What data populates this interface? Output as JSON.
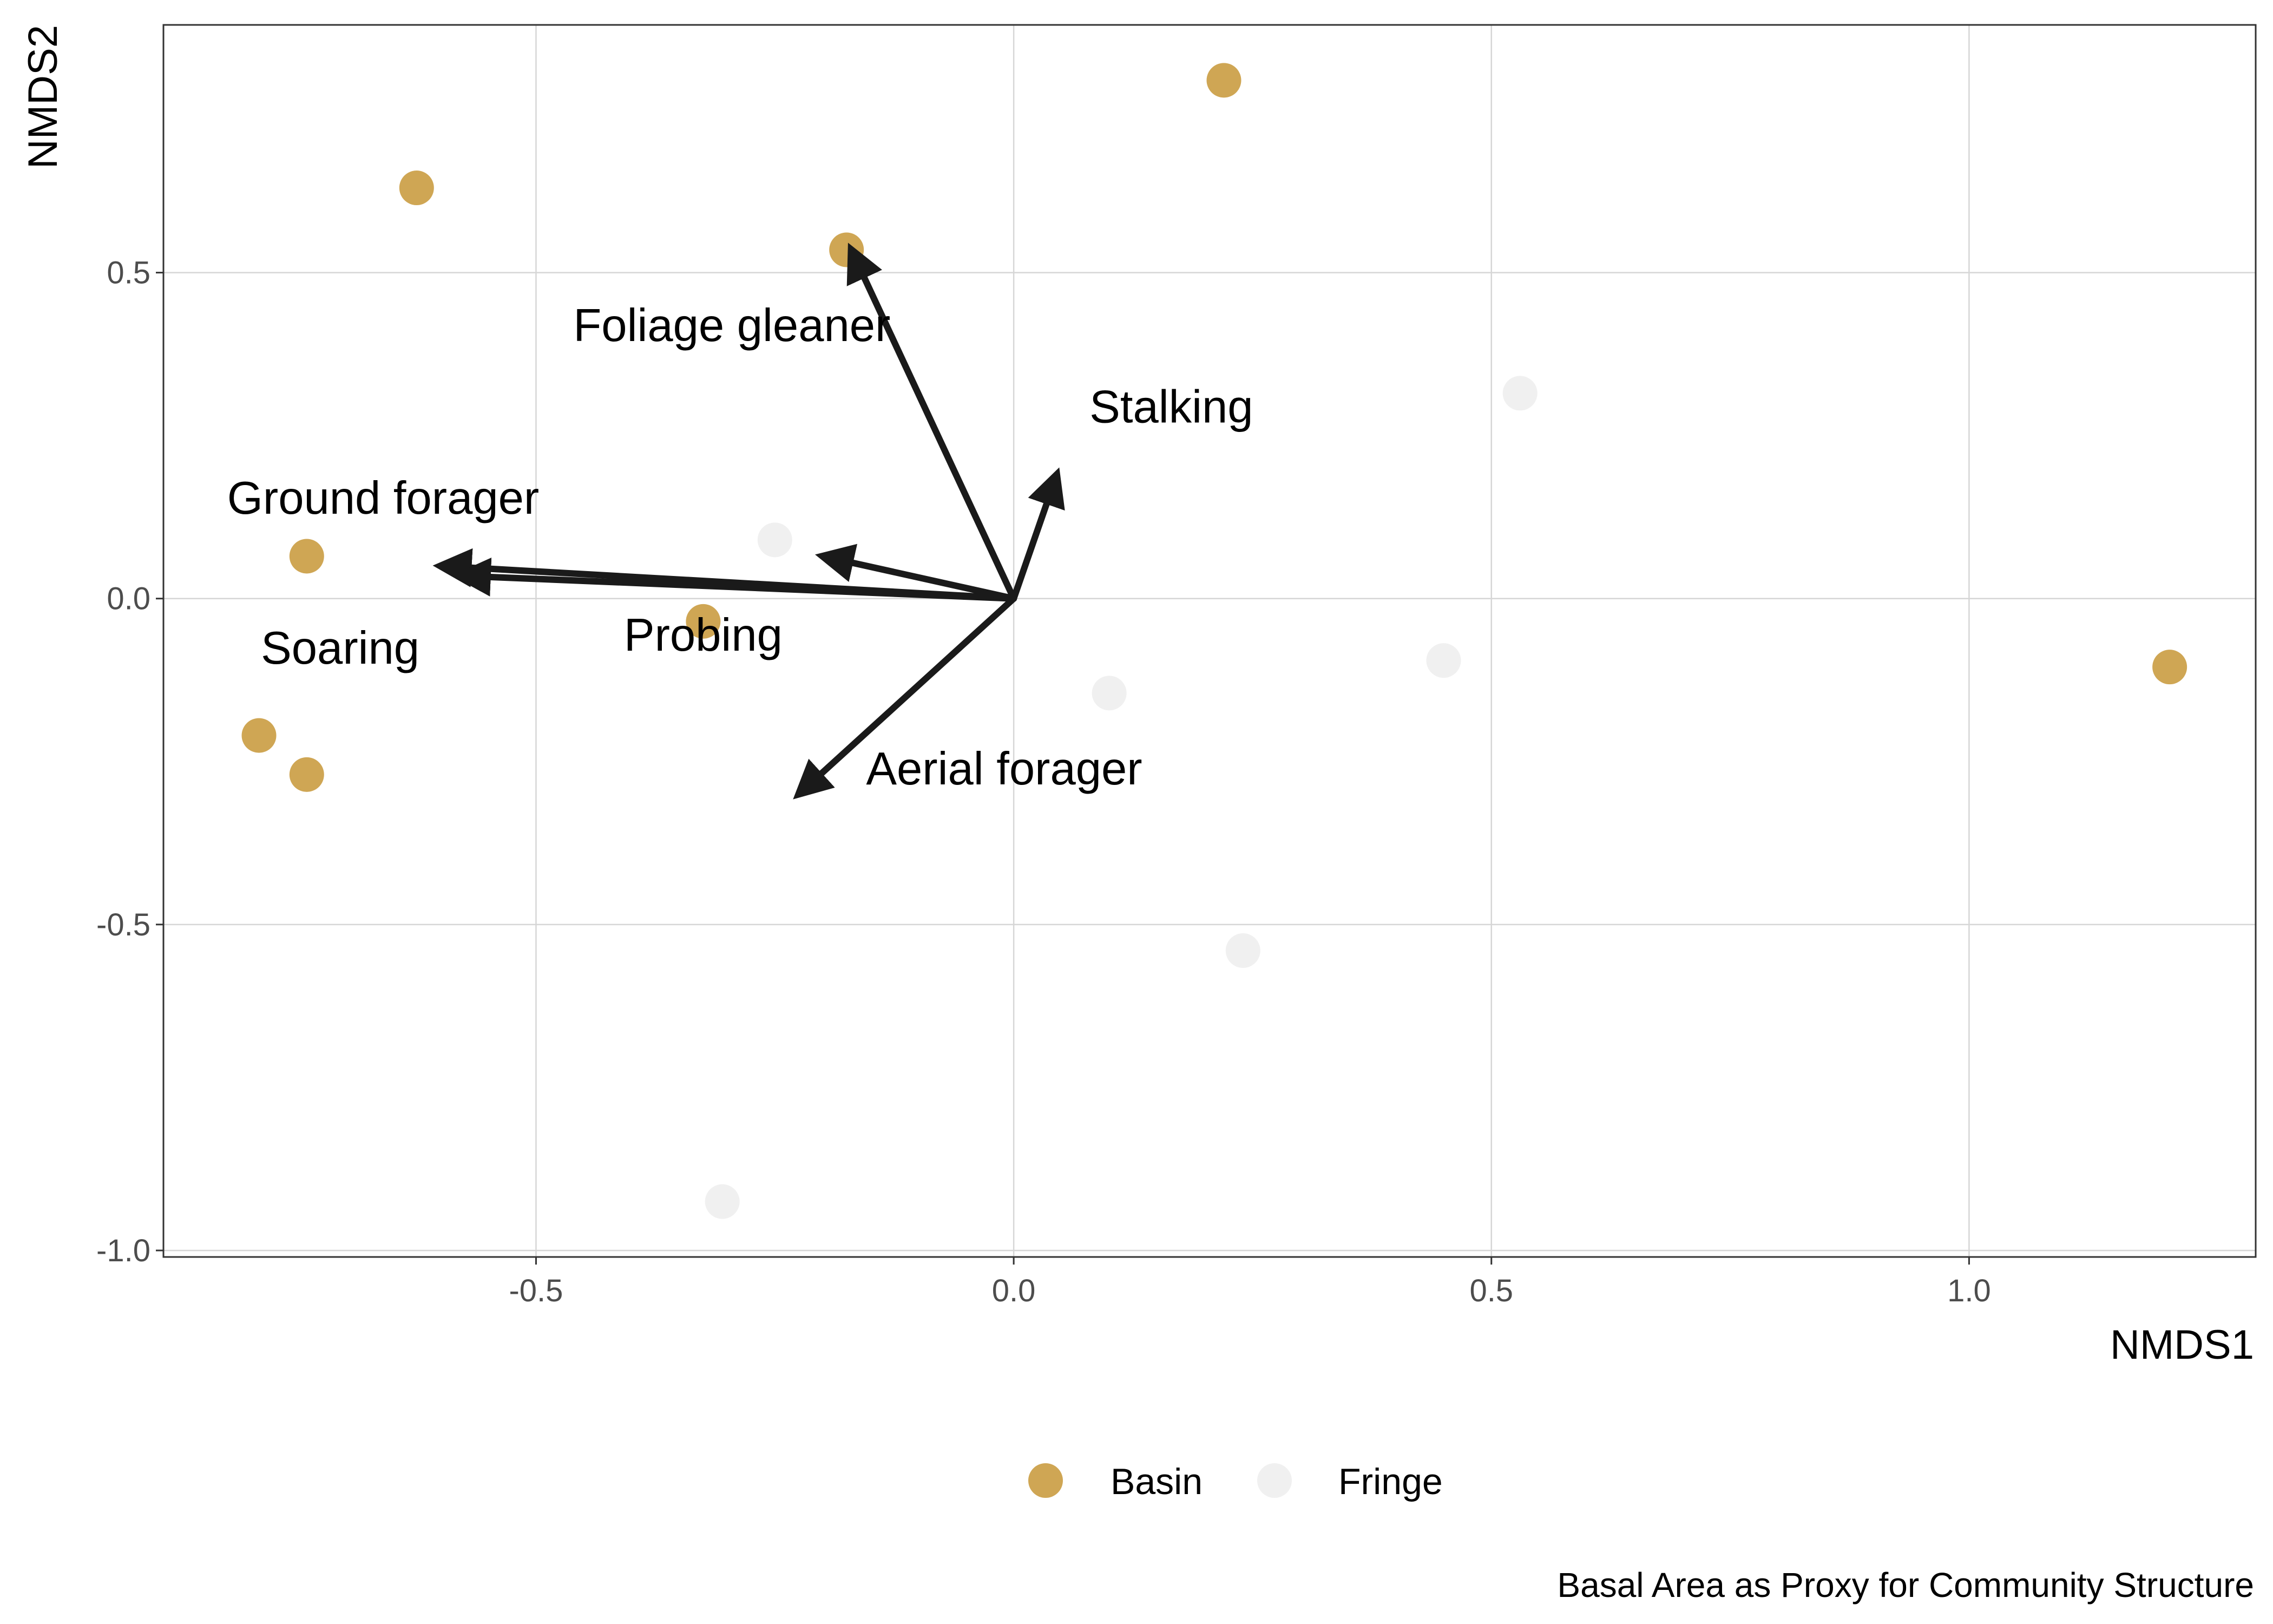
{
  "chart_data": {
    "type": "scatter",
    "xlabel": "NMDS1",
    "ylabel": "NMDS2",
    "caption": "Basal Area as Proxy for Community Structure",
    "xlim": [
      -0.89,
      1.3
    ],
    "ylim": [
      -1.01,
      0.88
    ],
    "x_ticks": [
      -0.5,
      0.0,
      0.5,
      1.0
    ],
    "x_tick_labels": [
      "-0.5",
      "0.0",
      "0.5",
      "1.0"
    ],
    "y_ticks": [
      -1.0,
      -0.5,
      0.0,
      0.5
    ],
    "y_tick_labels": [
      "-1.0",
      "-0.5",
      "0.0",
      "0.5"
    ],
    "grid": true,
    "legend_position": "bottom",
    "series": [
      {
        "name": "Basin",
        "color": "#CFA654",
        "points": [
          {
            "x": -0.625,
            "y": 0.63
          },
          {
            "x": -0.175,
            "y": 0.535
          },
          {
            "x": 0.22,
            "y": 0.795
          },
          {
            "x": -0.74,
            "y": 0.065
          },
          {
            "x": -0.325,
            "y": -0.035
          },
          {
            "x": -0.79,
            "y": -0.21
          },
          {
            "x": -0.74,
            "y": -0.27
          },
          {
            "x": 1.21,
            "y": -0.105
          }
        ]
      },
      {
        "name": "Fringe",
        "color": "#F0F0F0",
        "points": [
          {
            "x": -0.25,
            "y": 0.09
          },
          {
            "x": 0.53,
            "y": 0.315
          },
          {
            "x": 0.1,
            "y": -0.145
          },
          {
            "x": 0.45,
            "y": -0.095
          },
          {
            "x": 0.24,
            "y": -0.54
          },
          {
            "x": -0.305,
            "y": -0.925
          }
        ]
      }
    ],
    "vectors": [
      {
        "label": "Foliage gleaner",
        "x": -0.17,
        "y": 0.535,
        "label_x": -0.295,
        "label_y": 0.42,
        "label_anchor": "middle"
      },
      {
        "label": "Stalking",
        "x": 0.045,
        "y": 0.19,
        "label_x": 0.165,
        "label_y": 0.295,
        "label_anchor": "middle"
      },
      {
        "label": "Ground forager",
        "x": -0.6,
        "y": 0.05,
        "label_x": -0.66,
        "label_y": 0.155,
        "label_anchor": "middle"
      },
      {
        "label": "Soaring",
        "x": -0.58,
        "y": 0.035,
        "label_x": -0.705,
        "label_y": -0.075,
        "label_anchor": "middle"
      },
      {
        "label": "Probing",
        "x": -0.2,
        "y": 0.065,
        "label_x": -0.325,
        "label_y": -0.055,
        "label_anchor": "middle"
      },
      {
        "label": "Aerial forager",
        "x": -0.225,
        "y": -0.3,
        "label_x": -0.01,
        "label_y": -0.26,
        "label_anchor": "middle"
      }
    ]
  }
}
